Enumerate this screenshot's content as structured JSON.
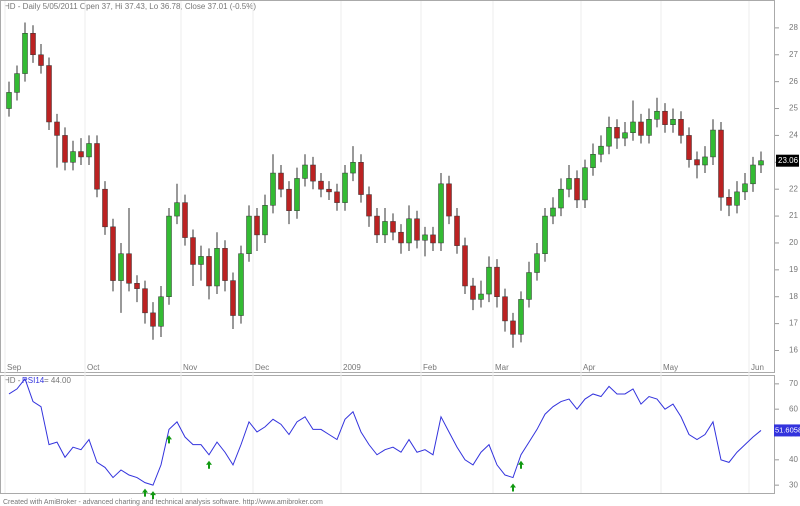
{
  "chart_data": [
    {
      "type": "candlestick",
      "title": "HD - Daily 5/05/2011 Open 37, Hi 37.43, Lo 36.78, Close 37.01 (-0.5%)",
      "categories": [
        "Sep",
        null,
        null,
        null,
        null,
        null,
        null,
        null,
        null,
        null,
        "Oct",
        null,
        null,
        null,
        null,
        null,
        null,
        null,
        null,
        null,
        null,
        null,
        "Nov",
        null,
        null,
        null,
        null,
        null,
        null,
        null,
        null,
        "Dec",
        null,
        null,
        null,
        null,
        null,
        null,
        null,
        null,
        null,
        null,
        "2009",
        null,
        null,
        null,
        null,
        null,
        null,
        null,
        null,
        null,
        "Feb",
        null,
        null,
        null,
        null,
        null,
        null,
        null,
        null,
        "Mar",
        null,
        null,
        null,
        null,
        null,
        null,
        null,
        null,
        null,
        null,
        "Apr",
        null,
        null,
        null,
        null,
        null,
        null,
        null,
        null,
        null,
        "May",
        null,
        null,
        null,
        null,
        null,
        null,
        null,
        null,
        null,
        null,
        "Jun",
        null
      ],
      "open": [
        25.0,
        25.6,
        26.3,
        27.8,
        27.0,
        26.6,
        24.5,
        24.0,
        23.0,
        23.4,
        23.2,
        23.7,
        22.0,
        20.6,
        18.6,
        19.6,
        18.5,
        18.3,
        17.4,
        16.9,
        18.0,
        21.0,
        21.5,
        20.2,
        19.2,
        19.5,
        18.4,
        19.8,
        18.6,
        17.3,
        19.6,
        21.0,
        20.3,
        21.4,
        22.6,
        22.0,
        21.2,
        22.4,
        22.9,
        22.3,
        22.0,
        21.9,
        21.5,
        22.6,
        23.0,
        21.8,
        21.0,
        20.3,
        20.8,
        20.4,
        20.0,
        20.9,
        20.1,
        20.3,
        20.0,
        22.2,
        21.0,
        19.9,
        18.4,
        17.9,
        18.1,
        19.1,
        18.0,
        17.1,
        16.6,
        17.9,
        18.9,
        19.6,
        21.0,
        21.3,
        22.0,
        22.4,
        21.6,
        22.8,
        23.3,
        23.6,
        24.3,
        23.9,
        24.1,
        24.5,
        24.0,
        24.6,
        24.9,
        24.4,
        24.6,
        24.0,
        23.1,
        22.9,
        23.2,
        24.2,
        21.7,
        21.4,
        21.9,
        22.2,
        22.9
      ],
      "high": [
        26.0,
        26.6,
        28.2,
        28.1,
        27.4,
        26.9,
        24.8,
        24.3,
        23.8,
        23.9,
        24.0,
        24.0,
        22.3,
        20.9,
        20.0,
        21.3,
        18.8,
        18.6,
        17.8,
        18.4,
        21.3,
        22.2,
        21.8,
        20.5,
        19.9,
        19.8,
        20.4,
        20.1,
        18.9,
        19.9,
        21.4,
        21.3,
        21.8,
        23.3,
        22.9,
        22.3,
        22.8,
        23.3,
        23.2,
        22.6,
        22.3,
        22.2,
        22.9,
        23.6,
        23.3,
        22.1,
        21.3,
        21.3,
        21.1,
        20.7,
        21.4,
        21.2,
        20.6,
        20.6,
        22.6,
        22.5,
        21.3,
        20.2,
        18.7,
        18.6,
        19.5,
        19.4,
        18.3,
        17.4,
        18.2,
        19.3,
        20.0,
        21.3,
        21.7,
        22.4,
        22.9,
        22.7,
        23.1,
        23.7,
        24.0,
        24.7,
        24.6,
        24.5,
        25.3,
        24.8,
        25.0,
        25.4,
        25.2,
        25.0,
        24.9,
        24.3,
        23.4,
        23.6,
        24.6,
        24.5,
        22.0,
        22.3,
        22.6,
        23.2,
        23.4
      ],
      "low": [
        24.7,
        25.3,
        26.0,
        26.7,
        26.3,
        24.2,
        22.8,
        22.7,
        22.7,
        22.9,
        22.9,
        21.7,
        20.3,
        18.2,
        17.4,
        18.2,
        17.8,
        17.0,
        16.4,
        16.5,
        17.7,
        20.7,
        19.9,
        18.4,
        18.6,
        17.9,
        18.1,
        18.2,
        16.8,
        17.0,
        19.3,
        19.7,
        20.0,
        21.1,
        21.7,
        20.7,
        20.9,
        22.1,
        22.0,
        21.7,
        21.6,
        21.2,
        21.2,
        22.3,
        21.5,
        20.6,
        20.0,
        20.0,
        20.1,
        19.6,
        19.7,
        19.8,
        19.5,
        19.7,
        19.7,
        20.7,
        19.6,
        18.1,
        17.5,
        17.6,
        17.8,
        17.6,
        16.7,
        16.1,
        16.3,
        17.6,
        18.6,
        19.3,
        20.7,
        21.0,
        21.7,
        21.3,
        21.3,
        22.5,
        23.0,
        23.3,
        23.5,
        23.6,
        23.8,
        23.7,
        23.7,
        24.3,
        24.1,
        24.1,
        23.7,
        22.8,
        22.4,
        22.6,
        22.9,
        21.2,
        21.0,
        21.1,
        21.6,
        21.9,
        22.6
      ],
      "close": [
        25.6,
        26.3,
        27.8,
        27.0,
        26.6,
        24.5,
        24.0,
        23.0,
        23.4,
        23.2,
        23.7,
        22.0,
        20.6,
        18.6,
        19.6,
        18.5,
        18.3,
        17.4,
        16.9,
        18.0,
        21.0,
        21.5,
        20.2,
        19.2,
        19.5,
        18.4,
        19.8,
        18.6,
        17.3,
        19.6,
        21.0,
        20.3,
        21.4,
        22.6,
        22.0,
        21.2,
        22.4,
        22.9,
        22.3,
        22.0,
        21.9,
        21.5,
        22.6,
        23.0,
        21.8,
        21.0,
        20.3,
        20.8,
        20.4,
        20.0,
        20.9,
        20.1,
        20.3,
        20.0,
        22.2,
        21.0,
        19.9,
        18.4,
        17.9,
        18.1,
        19.1,
        18.0,
        17.1,
        16.6,
        17.9,
        18.9,
        19.6,
        21.0,
        21.3,
        22.0,
        22.4,
        21.6,
        22.8,
        23.3,
        23.6,
        24.3,
        23.9,
        24.1,
        24.5,
        24.0,
        24.6,
        24.9,
        24.4,
        24.6,
        24.0,
        23.1,
        22.9,
        23.2,
        24.2,
        21.7,
        21.4,
        21.9,
        22.2,
        22.9,
        23.06
      ],
      "up_color": "#33bb33",
      "down_color": "#bb2222",
      "ylim": [
        15.2,
        29.0
      ],
      "yticks": [
        16,
        17,
        18,
        19,
        20,
        21,
        22,
        23,
        24,
        25,
        26,
        27,
        28
      ]
    },
    {
      "type": "line",
      "label_prefix": "HD -",
      "label_suffix": "= 44.00",
      "series": [
        {
          "name": "RSI14",
          "color": "#3333dd",
          "values": [
            66,
            68,
            72,
            63,
            61,
            46,
            47,
            41,
            45,
            44,
            48,
            39,
            37,
            33,
            36,
            34,
            33,
            31,
            30,
            38,
            52,
            55,
            49,
            46,
            46,
            42,
            47,
            43,
            38,
            46,
            55,
            51,
            53,
            56,
            54,
            50,
            55,
            57,
            52,
            52,
            50,
            48,
            56,
            59,
            51,
            46,
            42,
            44,
            45,
            43,
            48,
            43,
            44,
            42,
            57,
            51,
            45,
            40,
            38,
            43,
            46,
            38,
            34,
            33,
            42,
            47,
            52,
            58,
            61,
            63,
            64,
            60,
            64,
            66,
            65,
            69,
            66,
            66,
            68,
            62,
            65,
            64,
            60,
            62,
            57,
            50,
            48,
            50,
            55,
            40,
            39,
            43,
            46,
            49,
            51.6058
          ]
        }
      ],
      "buy_signals": [
        17,
        18,
        20,
        25,
        63,
        64
      ],
      "signal_color": "#119911",
      "ylim": [
        26.9,
        73.1
      ],
      "yticks": [
        30,
        40,
        50,
        60,
        70
      ]
    }
  ],
  "footer": "Created with AmiBroker - advanced charting and technical analysis software. http://www.amibroker.com"
}
